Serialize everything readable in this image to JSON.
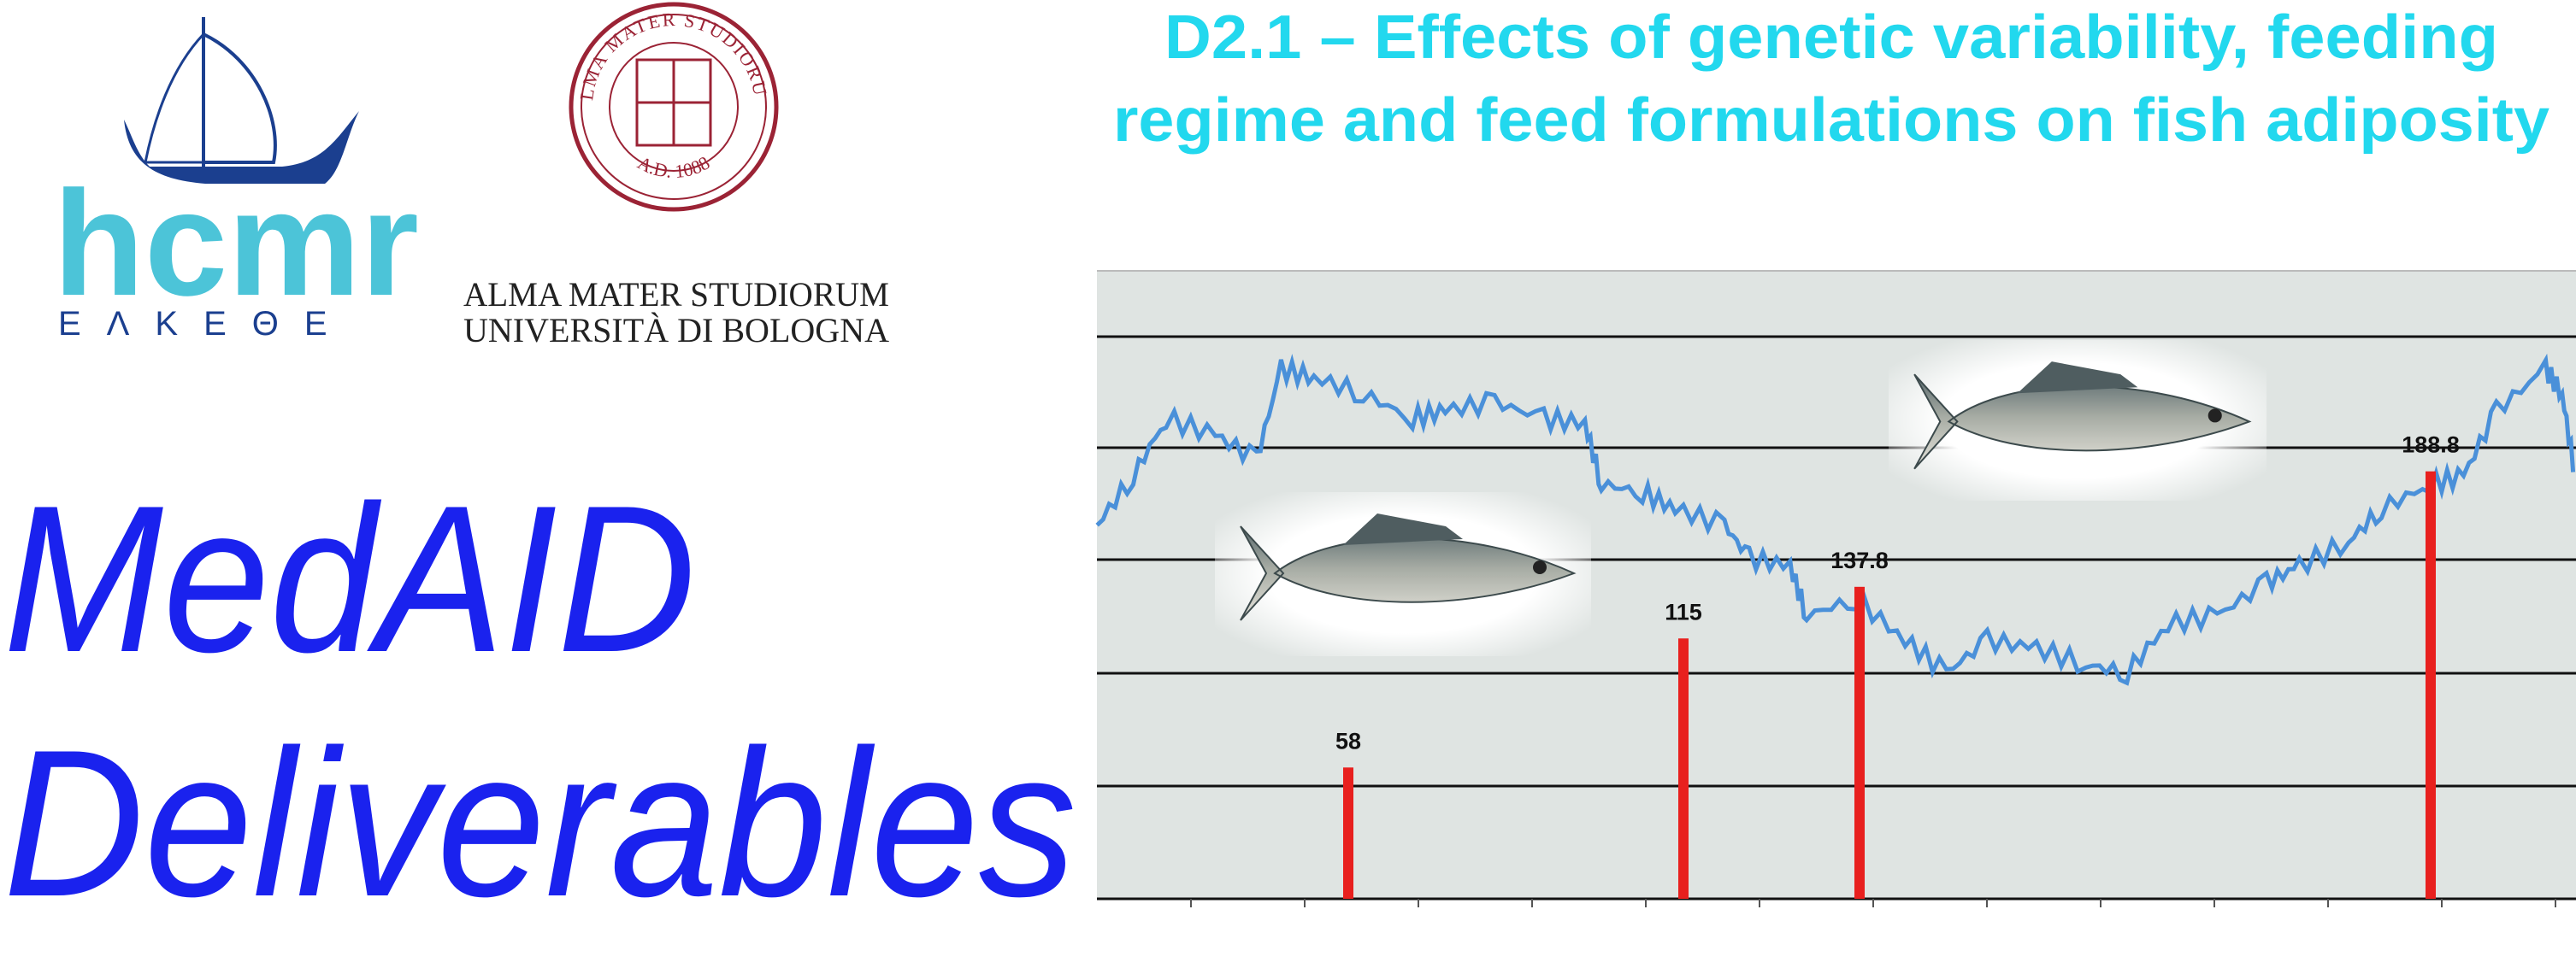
{
  "header": {
    "hcmr_logo": {
      "name": "hcmr",
      "subtitle": "ΕΛΚΕΘΕ"
    },
    "unibo_logo": {
      "seal_top": "ALMA MATER STUDIORUM",
      "seal_bottom": "A.D. 1088",
      "lines": [
        "ALMA MATER STUDIORUM",
        "UNIVERSITÀ DI BOLOGNA"
      ]
    }
  },
  "title": {
    "lines": [
      "MedAID",
      "Deliverables"
    ]
  },
  "deliverable": {
    "lines": [
      "D2.1 –  Effects of genetic variability, feeding",
      "regime and feed formulations on fish adiposity"
    ]
  },
  "chart": {
    "values": [
      58,
      115,
      137.8,
      188.8
    ]
  }
}
